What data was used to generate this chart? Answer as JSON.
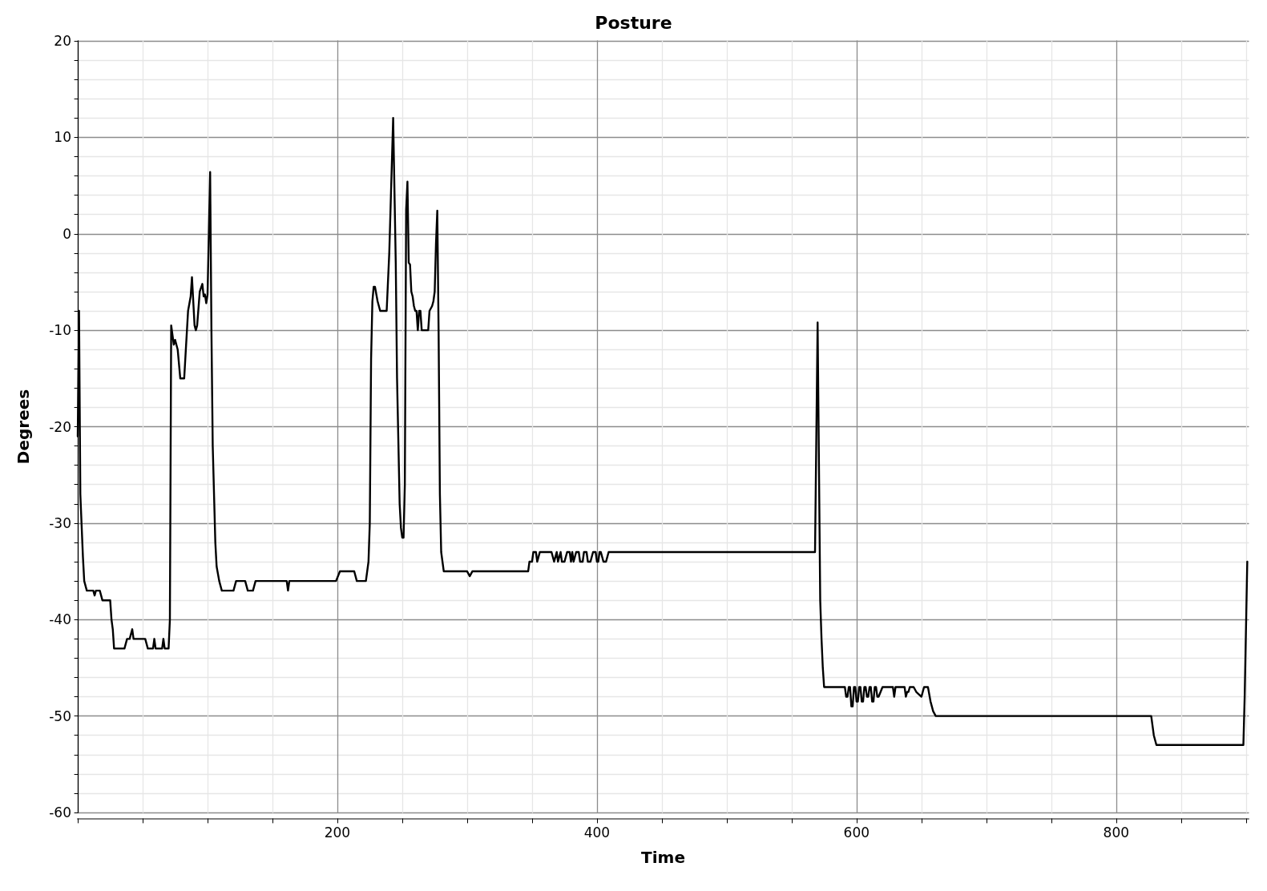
{
  "chart_data": {
    "type": "line",
    "title": "Posture",
    "xlabel": "Time",
    "ylabel": "Degrees",
    "xlim": [
      0,
      902
    ],
    "xticks": [
      {
        "value": 0,
        "label": null
      },
      {
        "value": 50,
        "label": null
      },
      {
        "value": 100,
        "label": null
      },
      {
        "value": 150,
        "label": null
      },
      200,
      {
        "value": 250,
        "label": null
      },
      {
        "value": 300,
        "label": null
      },
      {
        "value": 350,
        "label": null
      },
      400,
      {
        "value": 450,
        "label": null
      },
      {
        "value": 500,
        "label": null
      },
      {
        "value": 550,
        "label": null
      },
      600,
      {
        "value": 650,
        "label": null
      },
      {
        "value": 700,
        "label": null
      },
      {
        "value": 750,
        "label": null
      },
      800,
      {
        "value": 850,
        "label": null
      },
      {
        "value": 900,
        "label": null
      }
    ],
    "ylim": [
      -60,
      20
    ],
    "yticks": [
      -60,
      {
        "value": -58,
        "label": null
      },
      {
        "value": -56,
        "label": null
      },
      {
        "value": -54,
        "label": null
      },
      {
        "value": -52,
        "label": null
      },
      -50,
      {
        "value": -48,
        "label": null
      },
      {
        "value": -46,
        "label": null
      },
      {
        "value": -44,
        "label": null
      },
      {
        "value": -42,
        "label": null
      },
      -40,
      {
        "value": -38,
        "label": null
      },
      {
        "value": -36,
        "label": null
      },
      {
        "value": -34,
        "label": null
      },
      {
        "value": -32,
        "label": null
      },
      -30,
      {
        "value": -28,
        "label": null
      },
      {
        "value": -26,
        "label": null
      },
      {
        "value": -24,
        "label": null
      },
      {
        "value": -22,
        "label": null
      },
      -20,
      {
        "value": -18,
        "label": null
      },
      {
        "value": -16,
        "label": null
      },
      {
        "value": -14,
        "label": null
      },
      {
        "value": -12,
        "label": null
      },
      -10,
      {
        "value": -8,
        "label": null
      },
      {
        "value": -6,
        "label": null
      },
      {
        "value": -4,
        "label": null
      },
      {
        "value": -2,
        "label": null
      },
      0,
      {
        "value": 2,
        "label": null
      },
      {
        "value": 4,
        "label": null
      },
      {
        "value": 6,
        "label": null
      },
      {
        "value": 8,
        "label": null
      },
      10,
      {
        "value": 12,
        "label": null
      },
      {
        "value": 14,
        "label": null
      },
      {
        "value": 16,
        "label": null
      },
      {
        "value": 18,
        "label": null
      },
      20
    ],
    "grid": true,
    "marker": "none",
    "line_style": "solid",
    "series": [
      {
        "color": "#000000",
        "x": [
          0,
          1,
          2,
          4,
          5,
          7,
          12,
          13,
          14,
          17,
          18,
          19,
          25,
          26,
          27,
          28,
          36,
          38,
          40,
          42,
          43,
          52,
          54,
          58,
          59,
          60,
          65,
          66,
          67,
          70,
          71,
          72,
          73,
          74,
          75,
          77,
          79,
          82,
          85,
          87,
          88,
          90,
          91,
          92,
          94,
          96,
          97,
          98,
          99,
          100,
          102,
          103,
          104,
          106,
          107,
          109,
          111,
          120,
          122,
          129,
          131,
          135,
          137,
          161,
          162,
          163,
          199,
          202,
          213,
          215,
          222,
          224,
          225,
          226,
          227,
          228,
          229,
          231,
          233,
          238,
          240,
          243,
          245,
          246,
          248,
          249,
          250,
          251,
          252,
          253,
          254,
          255,
          256,
          257,
          258,
          259,
          260,
          261,
          262,
          263,
          264,
          265,
          270,
          271,
          273,
          274,
          275,
          276,
          277,
          278,
          279,
          280,
          282,
          300,
          302,
          304,
          347,
          348,
          350,
          351,
          353,
          354,
          356,
          365,
          367,
          369,
          370,
          372,
          373,
          375,
          377,
          379,
          380,
          381,
          382,
          384,
          386,
          387,
          389,
          390,
          392,
          393,
          395,
          397,
          399,
          400,
          401,
          402,
          403,
          405,
          407,
          409,
          568,
          570,
          572,
          573,
          574,
          575,
          591,
          592,
          593,
          594,
          595,
          596,
          597,
          598,
          599,
          600,
          601,
          602,
          603,
          604,
          605,
          606,
          607,
          608,
          609,
          610,
          611,
          612,
          613,
          614,
          615,
          616,
          617,
          620,
          628,
          629,
          630,
          637,
          638,
          639,
          640,
          641,
          644,
          646,
          650,
          651,
          652,
          655,
          657,
          659,
          661,
          827,
          829,
          831,
          898,
          899,
          901
        ],
        "values": [
          -21,
          -8,
          -27,
          -33.5,
          -36,
          -37,
          -37,
          -37.5,
          -37,
          -37,
          -37.5,
          -38,
          -38,
          -40,
          -41,
          -43,
          -43,
          -42,
          -42,
          -41,
          -42,
          -42,
          -43,
          -43,
          -42,
          -43,
          -43,
          -42,
          -43,
          -43,
          -40,
          -9.5,
          -10.5,
          -11.5,
          -11,
          -12,
          -15,
          -15,
          -8,
          -6.5,
          -4.5,
          -9.5,
          -10,
          -9.5,
          -6,
          -5.2,
          -6.5,
          -6.3,
          -7.2,
          -6.3,
          6.4,
          -10,
          -22,
          -32,
          -34.5,
          -36,
          -37,
          -37,
          -36,
          -36,
          -37,
          -37,
          -36,
          -36,
          -37,
          -36,
          -36,
          -35,
          -35,
          -36,
          -36,
          -34,
          -30,
          -13,
          -7,
          -5.5,
          -5.5,
          -7,
          -8,
          -8,
          -2,
          12,
          -3,
          -15,
          -28,
          -30.5,
          -31.5,
          -31.5,
          -26,
          2.5,
          5.4,
          -3,
          -3.2,
          -6,
          -6.5,
          -7.5,
          -8,
          -8,
          -10,
          -8,
          -8,
          -10,
          -10,
          -8,
          -7.5,
          -7,
          -6,
          -1,
          2.4,
          -10,
          -27,
          -33,
          -35,
          -35,
          -35.5,
          -35,
          -35,
          -34,
          -34,
          -33,
          -33,
          -34,
          -33,
          -33,
          -34,
          -33,
          -34,
          -33,
          -34,
          -34,
          -33,
          -33,
          -34,
          -33,
          -34,
          -33,
          -33,
          -34,
          -34,
          -33,
          -33,
          -34,
          -34,
          -33,
          -33,
          -34,
          -34,
          -33,
          -33,
          -34,
          -34,
          -33,
          -33,
          -9.2,
          -38,
          -42,
          -45,
          -47,
          -47,
          -48,
          -48,
          -47,
          -47,
          -49,
          -49,
          -47,
          -47,
          -48.5,
          -48.5,
          -47,
          -47,
          -48.5,
          -48.5,
          -47,
          -47,
          -48,
          -48,
          -47,
          -47,
          -48.5,
          -48.5,
          -47,
          -47,
          -48,
          -48,
          -47,
          -47,
          -48,
          -47,
          -47,
          -48,
          -47.5,
          -47.5,
          -47,
          -47,
          -47.5,
          -48,
          -47.5,
          -47,
          -47,
          -48.5,
          -49.5,
          -50,
          -50,
          -52,
          -53,
          -53,
          -48,
          -34
        ]
      }
    ]
  }
}
